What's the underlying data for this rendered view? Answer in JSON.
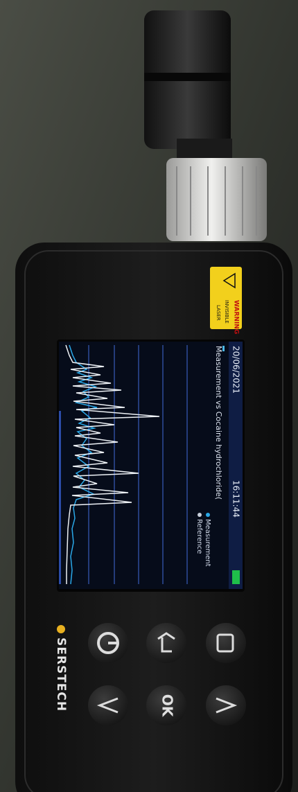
{
  "warning_label": {
    "title": "WARNING",
    "line1": "INVISIBLE",
    "line2": "LASER"
  },
  "screen": {
    "date": "20/06/2021",
    "time": "16:11:44",
    "title": "Measurement vs Cocaine hydrochloride(",
    "legend": [
      "Measurement",
      "Reference"
    ]
  },
  "brand": "SERSTECH",
  "buttons": {
    "ok": "OK"
  }
}
